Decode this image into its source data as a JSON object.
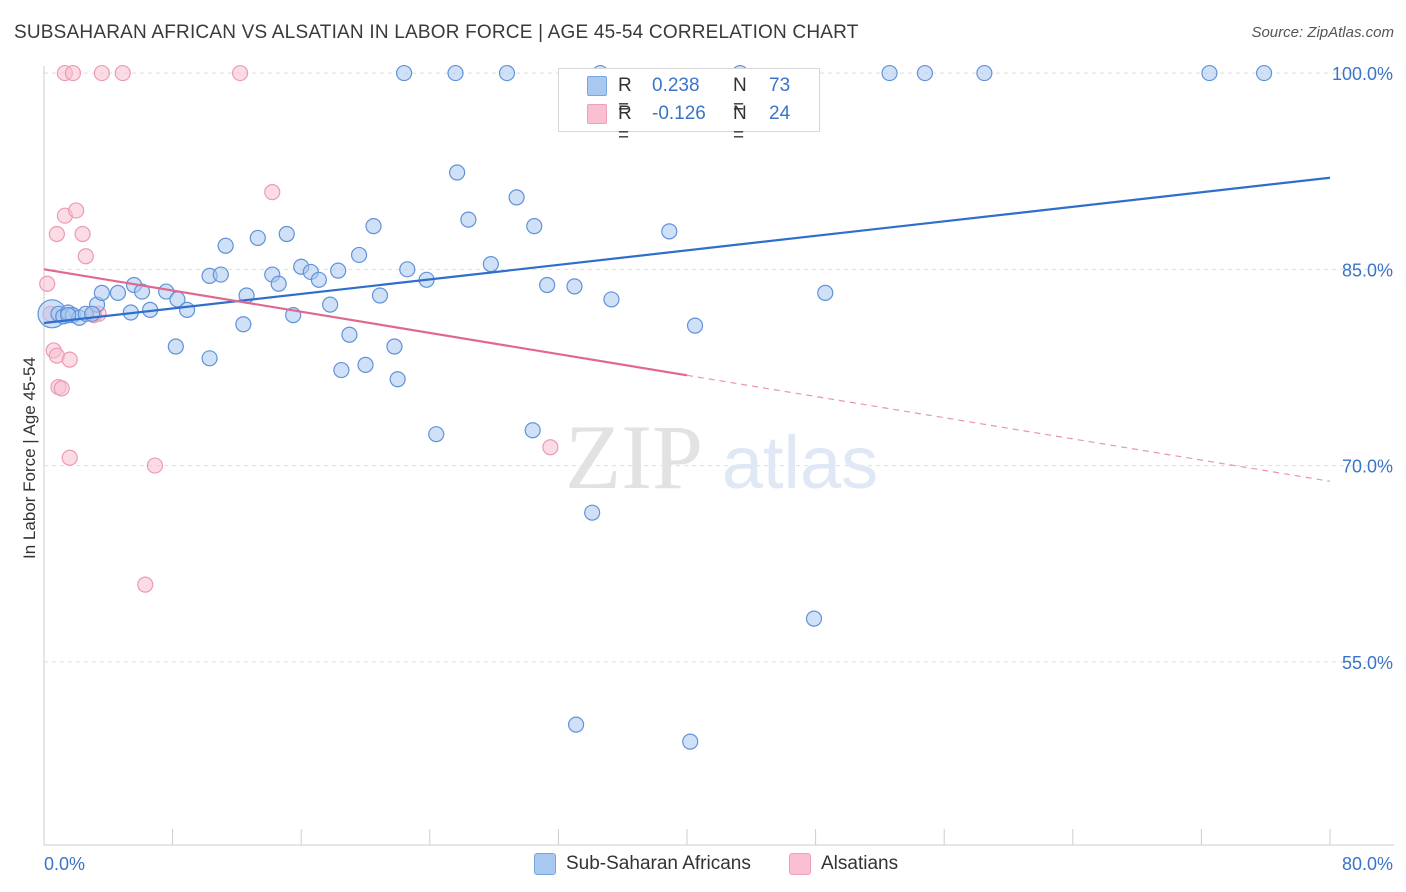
{
  "title": "SUBSAHARAN AFRICAN VS ALSATIAN IN LABOR FORCE | AGE 45-54 CORRELATION CHART",
  "source": "Source: ZipAtlas.com",
  "watermark": {
    "zip": "ZIP",
    "atlas": "atlas"
  },
  "legend": {
    "r_label": "R =",
    "n_label": "N =",
    "rows": [
      {
        "r": "0.238",
        "n": "73",
        "color": "#a9c8f0"
      },
      {
        "r": "-0.126",
        "n": "24",
        "color": "#f8c0d0"
      }
    ]
  },
  "bottom_legend": [
    {
      "label": "Sub-Saharan Africans",
      "color": "#a9c8f0"
    },
    {
      "label": "Alsatians",
      "color": "#f8c0d0"
    }
  ],
  "colors": {
    "blue_line": "#2f6fcc",
    "pink_line": "#e06890",
    "blue_fill": "#a9c8f0",
    "pink_fill": "#f8c0d0",
    "tick_text": "#3a74c9"
  },
  "chart_data": {
    "type": "scatter",
    "title": "SUBSAHARAN AFRICAN VS ALSATIAN IN LABOR FORCE | AGE 45-54 CORRELATION CHART",
    "xlabel": "",
    "ylabel": "In Labor Force | Age 45-54",
    "xlim": [
      0,
      80
    ],
    "ylim": [
      41,
      101
    ],
    "x_tick_labels": [
      "0.0%",
      "80.0%"
    ],
    "y_ticks": [
      55,
      70,
      85,
      100
    ],
    "y_tick_labels": [
      "55.0%",
      "70.0%",
      "85.0%",
      "100.0%"
    ],
    "grid": true,
    "legend_position": "top-center",
    "series": [
      {
        "name": "Sub-Saharan Africans",
        "color": "#a9c8f0",
        "trend": {
          "x": [
            0,
            80
          ],
          "y": [
            80.9,
            92.0
          ]
        },
        "points": [
          [
            0.5,
            81.6
          ],
          [
            0.9,
            81.6
          ],
          [
            1.2,
            81.4
          ],
          [
            1.5,
            81.7
          ],
          [
            1.8,
            81.5
          ],
          [
            2.2,
            81.3
          ],
          [
            2.6,
            81.6
          ],
          [
            3.3,
            82.3
          ],
          [
            3.6,
            83.2
          ],
          [
            4.6,
            83.2
          ],
          [
            5.4,
            81.7
          ],
          [
            5.6,
            83.8
          ],
          [
            6.1,
            83.3
          ],
          [
            6.6,
            81.9
          ],
          [
            7.6,
            83.3
          ],
          [
            8.3,
            82.7
          ],
          [
            8.9,
            81.9
          ],
          [
            10.3,
            84.5
          ],
          [
            11.3,
            86.8
          ],
          [
            11.0,
            84.6
          ],
          [
            12.6,
            83.0
          ],
          [
            13.3,
            87.4
          ],
          [
            14.2,
            84.6
          ],
          [
            14.6,
            83.9
          ],
          [
            15.1,
            87.7
          ],
          [
            15.5,
            81.5
          ],
          [
            16.0,
            85.2
          ],
          [
            16.6,
            84.8
          ],
          [
            17.1,
            84.2
          ],
          [
            17.8,
            82.3
          ],
          [
            18.3,
            84.9
          ],
          [
            19.0,
            80.0
          ],
          [
            19.6,
            86.1
          ],
          [
            20.5,
            88.3
          ],
          [
            20.9,
            83.0
          ],
          [
            21.8,
            79.1
          ],
          [
            22.6,
            85.0
          ],
          [
            23.8,
            84.2
          ],
          [
            25.7,
            92.4
          ],
          [
            26.4,
            88.8
          ],
          [
            27.8,
            85.4
          ],
          [
            29.4,
            90.5
          ],
          [
            30.5,
            88.3
          ],
          [
            31.3,
            83.8
          ],
          [
            33.0,
            83.7
          ],
          [
            35.3,
            82.7
          ],
          [
            38.9,
            87.9
          ],
          [
            40.5,
            80.7
          ],
          [
            48.6,
            83.2
          ],
          [
            22.4,
            100
          ],
          [
            25.6,
            100
          ],
          [
            28.8,
            100
          ],
          [
            34.6,
            100
          ],
          [
            43.3,
            100
          ],
          [
            52.6,
            100
          ],
          [
            54.8,
            100
          ],
          [
            58.5,
            100
          ],
          [
            72.5,
            100
          ],
          [
            75.9,
            100
          ],
          [
            8.2,
            79.1
          ],
          [
            10.3,
            78.2
          ],
          [
            12.4,
            80.8
          ],
          [
            18.5,
            77.3
          ],
          [
            20.0,
            77.7
          ],
          [
            22.0,
            76.6
          ],
          [
            24.4,
            72.4
          ],
          [
            30.4,
            72.7
          ],
          [
            34.1,
            66.4
          ],
          [
            47.9,
            58.3
          ],
          [
            33.1,
            50.2
          ],
          [
            40.2,
            48.9
          ],
          [
            3.0,
            81.6
          ],
          [
            1.5,
            81.5
          ]
        ]
      },
      {
        "name": "Alsatians",
        "color": "#f8c0d0",
        "trend": {
          "x": [
            0,
            40.0
          ],
          "y": [
            85.0,
            76.9
          ],
          "dashed_to": [
            80,
            68.8
          ]
        },
        "points": [
          [
            0.2,
            83.9
          ],
          [
            0.4,
            81.6
          ],
          [
            0.6,
            78.8
          ],
          [
            0.8,
            78.4
          ],
          [
            0.9,
            76.0
          ],
          [
            1.1,
            75.9
          ],
          [
            0.8,
            87.7
          ],
          [
            1.3,
            89.1
          ],
          [
            2.0,
            89.5
          ],
          [
            2.4,
            87.7
          ],
          [
            2.6,
            86.0
          ],
          [
            3.4,
            81.6
          ],
          [
            3.1,
            81.5
          ],
          [
            1.6,
            78.1
          ],
          [
            1.6,
            70.6
          ],
          [
            6.9,
            70.0
          ],
          [
            6.3,
            60.9
          ],
          [
            1.3,
            100
          ],
          [
            1.8,
            100
          ],
          [
            3.6,
            100
          ],
          [
            4.9,
            100
          ],
          [
            12.2,
            100
          ],
          [
            14.2,
            90.9
          ],
          [
            31.5,
            71.4
          ]
        ]
      }
    ]
  }
}
